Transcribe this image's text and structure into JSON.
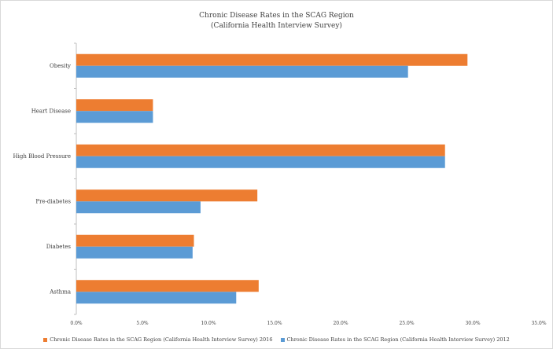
{
  "chart_data": {
    "type": "bar",
    "orientation": "horizontal",
    "title": "Chronic Disease Rates in the SCAG Region",
    "subtitle": "(California Health Interview Survey)",
    "categories": [
      "Obesity",
      "Heart Disease",
      "High Blood Pressure",
      "Pre-diabetes",
      "Diabetes",
      "Asthma"
    ],
    "series": [
      {
        "name": "Chronic Disease Rates in the SCAG Region (California Health Interview Survey) 2016",
        "color": "#ed7d31",
        "values": [
          29.6,
          5.8,
          27.9,
          13.7,
          8.9,
          13.8
        ]
      },
      {
        "name": "Chronic Disease Rates in the SCAG Region (California Health Interview Survey) 2012",
        "color": "#5b9bd5",
        "values": [
          25.1,
          5.8,
          27.9,
          9.4,
          8.8,
          12.1
        ]
      }
    ],
    "xlim": [
      0,
      35
    ],
    "xticks": [
      "0.0%",
      "5.0%",
      "10.0%",
      "15.0%",
      "20.0%",
      "25.0%",
      "30.0%",
      "35.0%"
    ],
    "grid": false,
    "legend_position": "bottom"
  }
}
